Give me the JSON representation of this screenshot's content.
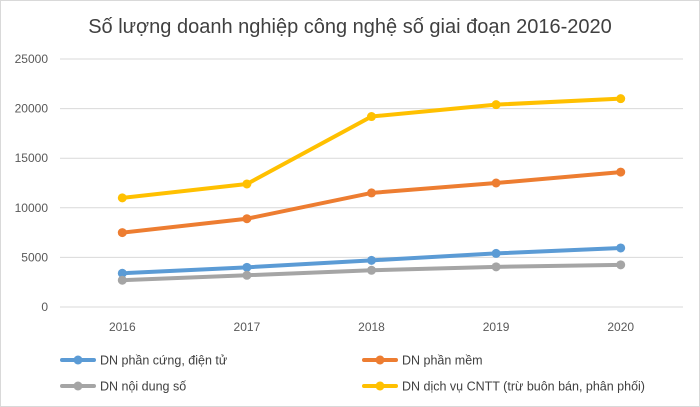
{
  "chart_data": {
    "type": "line",
    "title": "Số lượng doanh nghiệp công nghệ số giai đoạn 2016-2020",
    "xlabel": "",
    "ylabel": "",
    "categories": [
      "2016",
      "2017",
      "2018",
      "2019",
      "2020"
    ],
    "ylim": [
      0,
      25000
    ],
    "yticks": [
      0,
      5000,
      10000,
      15000,
      20000,
      25000
    ],
    "grid": "horizontal",
    "legend": "bottom",
    "series": [
      {
        "name": "DN phần cứng, điện tử",
        "color": "#5b9bd5",
        "values": [
          3400,
          4000,
          4700,
          5400,
          5950
        ]
      },
      {
        "name": "DN phần mềm",
        "color": "#ed7d31",
        "values": [
          7500,
          8900,
          11500,
          12500,
          13600
        ]
      },
      {
        "name": "DN nội dung số",
        "color": "#a5a5a5",
        "values": [
          2700,
          3200,
          3700,
          4050,
          4250
        ]
      },
      {
        "name": "DN dịch vụ CNTT (trừ buôn bán, phân phối)",
        "color": "#ffc000",
        "values": [
          11000,
          12400,
          19200,
          20400,
          21000
        ]
      }
    ]
  }
}
